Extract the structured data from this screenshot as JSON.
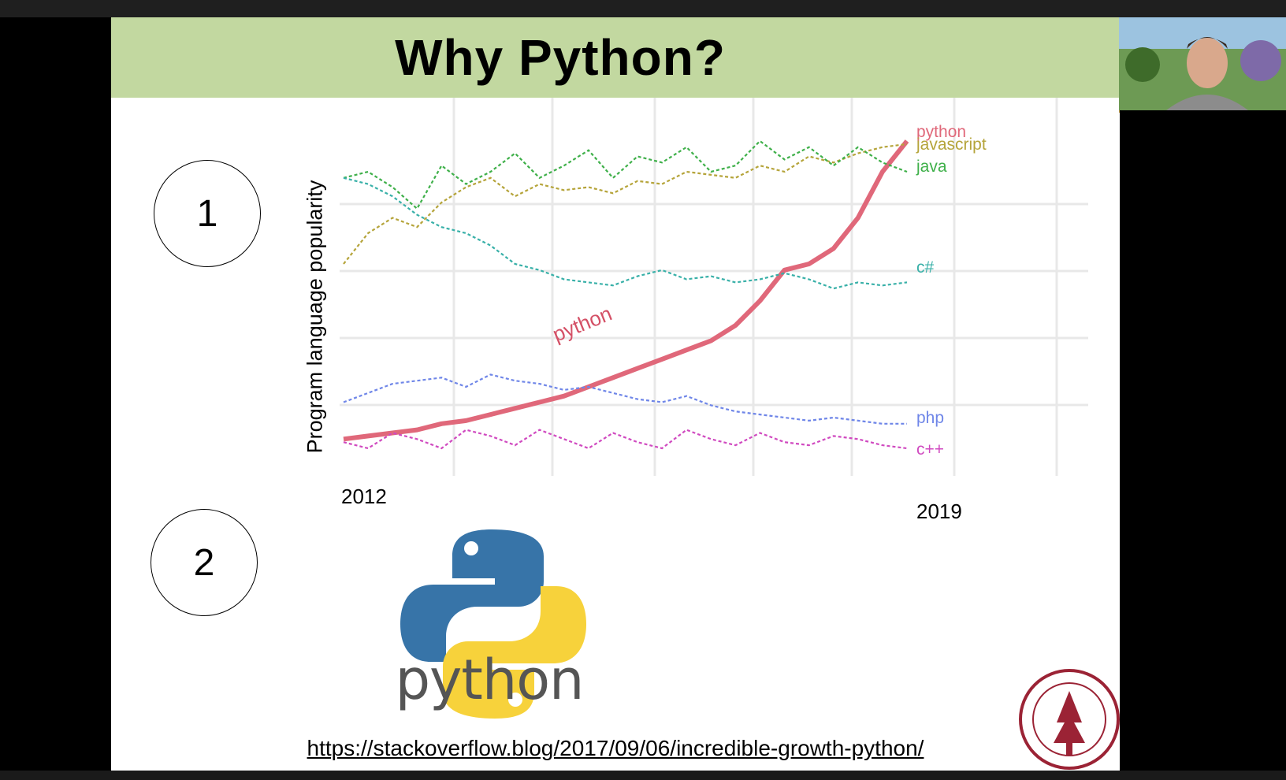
{
  "slide": {
    "title": "Why Python?",
    "markers": [
      "1",
      "2"
    ],
    "link": "https://stackoverflow.blog/2017/09/06/incredible-growth-python/",
    "logo_label": "python"
  },
  "chart_data": {
    "type": "line",
    "ylabel": "Program language popularity",
    "x_start_label": "2012",
    "x_end_label": "2019",
    "annotation": "python",
    "series": [
      {
        "name": "python",
        "color": "#e0687a",
        "values": [
          3,
          4,
          5,
          6,
          8,
          9,
          11,
          13,
          15,
          17,
          20,
          23,
          26,
          29,
          32,
          35,
          40,
          48,
          58,
          60,
          65,
          75,
          90,
          100
        ]
      },
      {
        "name": "javascript",
        "color": "#b5a43a",
        "values": [
          60,
          70,
          75,
          72,
          80,
          85,
          88,
          82,
          86,
          84,
          85,
          83,
          87,
          86,
          90,
          89,
          88,
          92,
          90,
          95,
          93,
          96,
          98,
          99
        ]
      },
      {
        "name": "java",
        "color": "#3fb04a",
        "values": [
          88,
          90,
          85,
          78,
          92,
          86,
          90,
          96,
          88,
          92,
          97,
          88,
          95,
          93,
          98,
          90,
          92,
          100,
          94,
          98,
          92,
          98,
          93,
          90
        ]
      },
      {
        "name": "c#",
        "color": "#38b0a8",
        "values": [
          88,
          86,
          82,
          76,
          72,
          70,
          66,
          60,
          58,
          55,
          54,
          53,
          56,
          58,
          55,
          56,
          54,
          55,
          57,
          55,
          52,
          54,
          53,
          54
        ]
      },
      {
        "name": "php",
        "color": "#6f86e8",
        "values": [
          15,
          18,
          21,
          22,
          23,
          20,
          24,
          22,
          21,
          19,
          20,
          18,
          16,
          15,
          17,
          14,
          12,
          11,
          10,
          9,
          10,
          9,
          8,
          8
        ]
      },
      {
        "name": "c++",
        "color": "#d04ac0",
        "values": [
          2,
          0,
          5,
          3,
          0,
          6,
          4,
          1,
          6,
          3,
          0,
          5,
          2,
          0,
          6,
          3,
          1,
          5,
          2,
          1,
          4,
          3,
          1,
          0
        ]
      }
    ]
  },
  "colors": {
    "title_band": "#c2d8a0",
    "link": "#000000"
  }
}
